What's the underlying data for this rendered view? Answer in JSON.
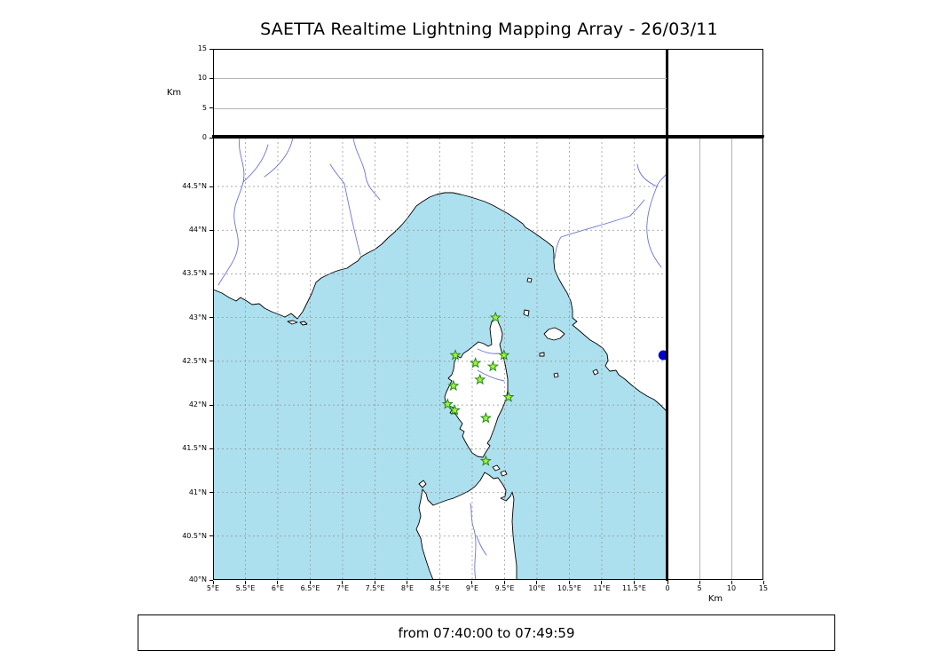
{
  "title": "SAETTA Realtime Lightning Mapping Array - 26/03/11",
  "footer_text": "from 07:40:00 to 07:49:59",
  "chart_data": {
    "type": "scatter",
    "title": "SAETTA Realtime Lightning Mapping Array - 26/03/11",
    "time_window": "from 07:40:00 to 07:49:59",
    "map": {
      "lon_range": [
        5.0,
        12.014
      ],
      "lat_range": [
        40.0,
        45.059
      ],
      "lon_ticks": [
        {
          "label": "5°E",
          "value": 5.0
        },
        {
          "label": "5.5°E",
          "value": 5.5
        },
        {
          "label": "6°E",
          "value": 6.0
        },
        {
          "label": "6.5°E",
          "value": 6.5
        },
        {
          "label": "7°E",
          "value": 7.0
        },
        {
          "label": "7.5°E",
          "value": 7.5
        },
        {
          "label": "8°E",
          "value": 8.0
        },
        {
          "label": "8.5°E",
          "value": 8.5
        },
        {
          "label": "9°E",
          "value": 9.0
        },
        {
          "label": "9.5°E",
          "value": 9.5
        },
        {
          "label": "10°E",
          "value": 10.0
        },
        {
          "label": "10.5°E",
          "value": 10.5
        },
        {
          "label": "11°E",
          "value": 11.0
        },
        {
          "label": "11.5°E",
          "value": 11.5
        }
      ],
      "lat_ticks": [
        {
          "label": "44.5°N",
          "value": 44.5
        },
        {
          "label": "44°N",
          "value": 44.0
        },
        {
          "label": "43.5°N",
          "value": 43.5
        },
        {
          "label": "43°N",
          "value": 43.0
        },
        {
          "label": "42.5°N",
          "value": 42.5
        },
        {
          "label": "42°N",
          "value": 42.0
        },
        {
          "label": "41.5°N",
          "value": 41.5
        },
        {
          "label": "41°N",
          "value": 41.0
        },
        {
          "label": "40.5°N",
          "value": 40.5
        },
        {
          "label": "40°N",
          "value": 40.0
        }
      ],
      "grid_style": "dashed, every 0.5 degree"
    },
    "altitude_axis_top": {
      "label": "Km",
      "range": [
        0,
        15
      ],
      "ticks": [
        0,
        5,
        10,
        15
      ],
      "gridlines": [
        5,
        10
      ]
    },
    "altitude_axis_right": {
      "label": "Km",
      "range": [
        0,
        15
      ],
      "ticks": [
        0,
        5,
        10,
        15
      ],
      "gridlines": [
        5,
        10
      ]
    },
    "stations": [
      {
        "lon": 9.36,
        "lat": 43.0
      },
      {
        "lon": 8.74,
        "lat": 42.57
      },
      {
        "lon": 9.05,
        "lat": 42.48
      },
      {
        "lon": 9.49,
        "lat": 42.57
      },
      {
        "lon": 9.32,
        "lat": 42.44
      },
      {
        "lon": 9.12,
        "lat": 42.29
      },
      {
        "lon": 8.71,
        "lat": 42.22
      },
      {
        "lon": 8.62,
        "lat": 42.01
      },
      {
        "lon": 8.73,
        "lat": 41.94
      },
      {
        "lon": 9.56,
        "lat": 42.09
      },
      {
        "lon": 9.21,
        "lat": 41.85
      },
      {
        "lon": 9.21,
        "lat": 41.36
      }
    ],
    "station_marker": {
      "shape": "star",
      "fill": "#a9f03d",
      "edge": "#1f8a1f"
    },
    "events": [
      {
        "lon": 11.95,
        "lat": 42.57,
        "shape": "circle",
        "color": "#0000cd"
      }
    ],
    "style": {
      "sea": "#ade0ee",
      "land": "#ffffff",
      "coast": "#000000",
      "river": "#6a74d8",
      "grid": "#8f8f8f"
    }
  }
}
